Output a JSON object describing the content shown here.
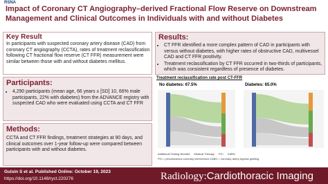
{
  "header": {
    "logo": "RSNA",
    "title": "Impact of Coronary CT Angiography–derived Fractional Flow Reserve on Downstream Management and Clinical Outcomes in Individuals with and without Diabetes"
  },
  "key_result": {
    "heading": "Key Result",
    "text": "In participants with suspected coronary artery disease (CAD) from coronary CT angiography (CCTA), rates of treatment reclassification following CT fractional flow reserve (CT FFR) measurement were similar between those with and without diabetes mellitus."
  },
  "participants": {
    "heading": "Participants:",
    "bullets": [
      "4,290 participants (mean age, 66 years ± [SD] 10, 66% male participants, 22% with diabetes) from the ADVANCE registry with suspected CAD who were evaluated using CCTA and CT FFR"
    ]
  },
  "methods": {
    "heading": "Methods:",
    "text": "CCTA and CT FFR findings, treatment strategies at 90 days, and clinical outcomes over 1-year follow-up were compared between participants with and without diabetes."
  },
  "results": {
    "heading": "Results:",
    "bullets": [
      "CT FFR identified a more complex pattern of CAD in participants with versus without diabetes, with higher rates of obstructive CAD, multivessel CAD and CT FFR positivity.",
      "Treatment reclassification by CT FFR occurred in two-thirds of participants, which was consistent regardless of presence of diabetes."
    ]
  },
  "figure": {
    "title": "Treatment reclassification rate post CT-FFR",
    "panels": [
      {
        "label": "No diabetes: 67.5%"
      },
      {
        "label": "Diabetes: 65.0%"
      }
    ],
    "legend": [
      "Additional Testing Needed",
      "Medical Therapy",
      "PCI",
      "CABG"
    ],
    "note": "PCI = percutaneous coronary intervention  CABG = coronary artery bypass grafting"
  },
  "footer": {
    "citation": "Gulsin S et al. Published Online: October 19, 2023",
    "doi": "https://doi.org/10.1148/ryct.220276",
    "journal": "Radiology:",
    "journal_sub": "Cardiothoracic Imaging"
  }
}
